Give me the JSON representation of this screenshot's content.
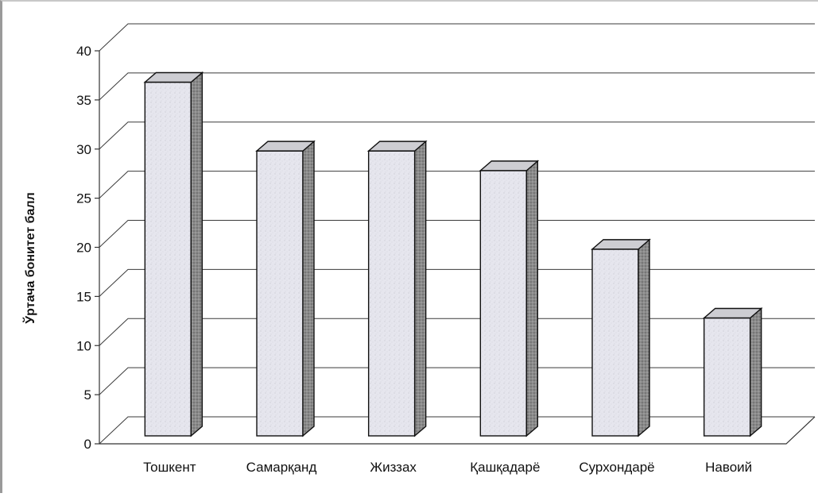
{
  "chart_data": {
    "type": "bar",
    "categories": [
      "Тошкент",
      "Самарқанд",
      "Жиззах",
      "Қашқадарё",
      "Сурхондарё",
      "Навоий"
    ],
    "values": [
      36,
      29,
      29,
      27,
      19,
      12
    ],
    "title": "",
    "xlabel": "",
    "ylabel": "Ўртача бонитет балл",
    "ylim": [
      0,
      40
    ],
    "yticks": [
      0,
      5,
      10,
      15,
      20,
      25,
      30,
      35,
      40
    ],
    "grid": true,
    "legend": "none",
    "style": "3d-columns",
    "colors": {
      "bar_front": "#e6e6ee",
      "bar_side": "#8a8a8a",
      "bar_top": "#cdcdd2",
      "bar_stroke": "#111111",
      "grid": "#3a3a3a",
      "axis": "#333333",
      "text": "#111111"
    }
  }
}
